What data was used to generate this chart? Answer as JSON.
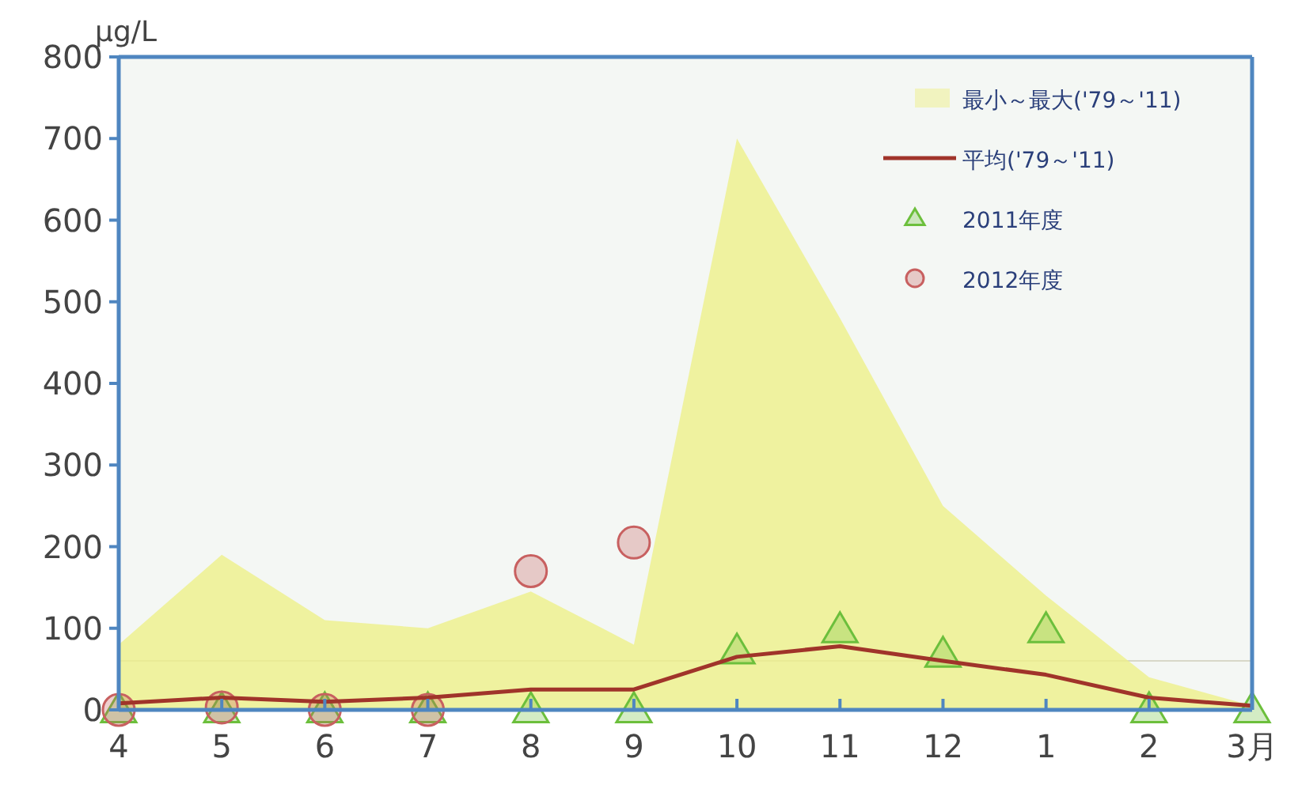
{
  "chart_data": {
    "type": "line",
    "ylabel": "μg/L",
    "categories": [
      "4",
      "5",
      "6",
      "7",
      "8",
      "9",
      "10",
      "11",
      "12",
      "1",
      "2",
      "3月"
    ],
    "ylim": [
      0,
      800
    ],
    "yticks": [
      0,
      100,
      200,
      300,
      400,
      500,
      600,
      700,
      800
    ],
    "grid": false,
    "legend": "top right",
    "ref_lines": [
      {
        "axis": "y",
        "value": 60,
        "color": "#d8d8c8"
      }
    ],
    "series": [
      {
        "name": "最小～最大('79～'11)",
        "type": "area",
        "color": "#eef08a",
        "values": [
          80,
          190,
          110,
          100,
          145,
          80,
          700,
          480,
          250,
          140,
          40,
          5
        ]
      },
      {
        "name": "平均('79～'11)",
        "color": "#a0342a",
        "marker": "none",
        "values": [
          8,
          15,
          10,
          15,
          25,
          25,
          65,
          78,
          60,
          43,
          15,
          5
        ]
      },
      {
        "name": "2011年度",
        "type": "scatter",
        "color": "#6cbf3c",
        "marker": "triangle",
        "values": [
          0,
          0,
          0,
          0,
          0,
          0,
          72,
          98,
          68,
          98,
          0,
          0
        ]
      },
      {
        "name": "2012年度",
        "type": "scatter",
        "color": "#c86060",
        "marker": "circle",
        "values": [
          0,
          3,
          0,
          0,
          170,
          205,
          null,
          null,
          null,
          null,
          null,
          null
        ]
      }
    ]
  }
}
